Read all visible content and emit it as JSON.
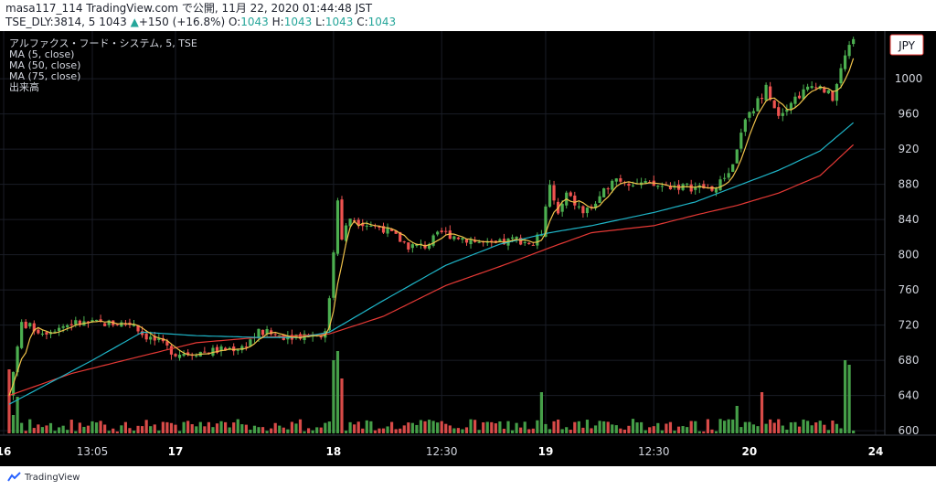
{
  "header": {
    "line1": "masa117_114 TradingView.com で公開, 11月 22, 2020 01:44:48 JST",
    "symbol": "TSE_DLY:3814, 5 1043",
    "change": "+150 (+16.8%)",
    "ohlc_o_label": "O:",
    "ohlc_o": "1043",
    "ohlc_h_label": "H:",
    "ohlc_h": "1043",
    "ohlc_l_label": "L:",
    "ohlc_l": "1043",
    "ohlc_c_label": "C:",
    "ohlc_c": "1043"
  },
  "legend": {
    "title": "アルファクス・フード・システム, 5, TSE",
    "ma5": "MA (5, close)",
    "ma50": "MA (50, close)",
    "ma75": "MA (75, close)",
    "volume": "出来高"
  },
  "currency_badge": "JPY",
  "brand": "TradingView",
  "colors": {
    "background": "#000000",
    "up": "#4caf50",
    "down": "#ef5350",
    "ma5": "#f0c24a",
    "ma50": "#1eb5c8",
    "ma75": "#e53935",
    "axis_text": "#d1d4dc"
  },
  "chart_data": {
    "type": "candlestick",
    "interval": "5",
    "y_ticks": [
      600,
      640,
      680,
      720,
      760,
      800,
      840,
      880,
      920,
      960,
      1000
    ],
    "ylim": [
      597,
      1050
    ],
    "x_ticks": [
      "16",
      "13:05",
      "17",
      "18",
      "12:30",
      "19",
      "12:30",
      "20",
      "24"
    ],
    "grid": true,
    "last_price": 1043,
    "series": [
      {
        "name": "MA (5, close)",
        "values": []
      },
      {
        "name": "MA (50, close)",
        "values": []
      },
      {
        "name": "MA (75, close)",
        "values": []
      }
    ],
    "close_path": [
      [
        0,
        640
      ],
      [
        3,
        722
      ],
      [
        8,
        712
      ],
      [
        15,
        722
      ],
      [
        30,
        722
      ],
      [
        32,
        710
      ],
      [
        36,
        700
      ],
      [
        40,
        688
      ],
      [
        48,
        690
      ],
      [
        56,
        695
      ],
      [
        60,
        712
      ],
      [
        66,
        708
      ],
      [
        76,
        710
      ],
      [
        77,
        752
      ],
      [
        79,
        858
      ],
      [
        80,
        820
      ],
      [
        82,
        842
      ],
      [
        86,
        835
      ],
      [
        90,
        830
      ],
      [
        96,
        810
      ],
      [
        100,
        810
      ],
      [
        104,
        825
      ],
      [
        110,
        818
      ],
      [
        116,
        810
      ],
      [
        122,
        818
      ],
      [
        126,
        812
      ],
      [
        128,
        825
      ],
      [
        130,
        878
      ],
      [
        132,
        845
      ],
      [
        134,
        868
      ],
      [
        138,
        848
      ],
      [
        142,
        862
      ],
      [
        145,
        888
      ],
      [
        150,
        882
      ],
      [
        155,
        878
      ],
      [
        160,
        878
      ],
      [
        166,
        876
      ],
      [
        170,
        875
      ],
      [
        174,
        902
      ],
      [
        176,
        942
      ],
      [
        178,
        958
      ],
      [
        182,
        990
      ],
      [
        185,
        960
      ],
      [
        188,
        975
      ],
      [
        194,
        995
      ],
      [
        198,
        978
      ],
      [
        201,
        1025
      ],
      [
        203,
        1043
      ]
    ],
    "ma50_path": [
      [
        0,
        630
      ],
      [
        10,
        655
      ],
      [
        20,
        680
      ],
      [
        32,
        712
      ],
      [
        45,
        708
      ],
      [
        60,
        706
      ],
      [
        70,
        706
      ],
      [
        77,
        712
      ],
      [
        90,
        748
      ],
      [
        105,
        788
      ],
      [
        118,
        812
      ],
      [
        130,
        825
      ],
      [
        140,
        833
      ],
      [
        155,
        848
      ],
      [
        165,
        860
      ],
      [
        175,
        878
      ],
      [
        185,
        896
      ],
      [
        195,
        918
      ],
      [
        203,
        950
      ]
    ],
    "ma75_path": [
      [
        0,
        640
      ],
      [
        15,
        665
      ],
      [
        32,
        685
      ],
      [
        45,
        700
      ],
      [
        60,
        706
      ],
      [
        70,
        708
      ],
      [
        77,
        710
      ],
      [
        90,
        730
      ],
      [
        105,
        765
      ],
      [
        120,
        790
      ],
      [
        130,
        808
      ],
      [
        140,
        825
      ],
      [
        155,
        833
      ],
      [
        165,
        845
      ],
      [
        175,
        856
      ],
      [
        185,
        870
      ],
      [
        195,
        890
      ],
      [
        203,
        925
      ]
    ],
    "volume_spikes": [
      [
        0,
        70
      ],
      [
        1,
        20
      ],
      [
        2,
        40
      ],
      [
        78,
        80
      ],
      [
        79,
        90
      ],
      [
        80,
        60
      ],
      [
        128,
        45
      ],
      [
        175,
        30
      ],
      [
        181,
        45
      ],
      [
        201,
        80
      ],
      [
        202,
        75
      ]
    ]
  }
}
